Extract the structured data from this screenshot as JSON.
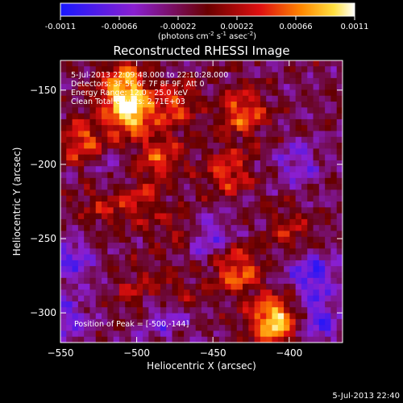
{
  "colorbar": {
    "ticks": [
      "-0.0011",
      "-0.00066",
      "-0.00022",
      "0.00022",
      "0.00066",
      "0.0011"
    ],
    "tick_values": [
      -0.0011,
      -0.00066,
      -0.00022,
      0.00022,
      0.00066,
      0.0011
    ],
    "range": [
      -0.0011,
      0.0011
    ],
    "units_main": "(photons cm",
    "units_exp1": "-2",
    "units_mid": " s",
    "units_exp2": "-1",
    "units_tail": " asec",
    "units_exp3": "-2",
    "units_close": ")",
    "colormap": "blue-purple-red-orange-yellow-white"
  },
  "annotations": {
    "time_range": "5-Jul-2013 22:09:48.000 to 22:10:28.000",
    "detectors": "Detectors: 3F 5F 6F 7F 8F 9F, Att 0",
    "energy": "Energy Range: 12.0 - 25.0 keV",
    "clean": "Clean     Total Counts: 2.71E+03",
    "peak": "Position of Peak = [-500,-144]"
  },
  "footer_timestamp": "5-Jul-2013 22:40",
  "chart_data": {
    "type": "heatmap",
    "title": "Reconstructed RHESSI Image",
    "xlabel": "Heliocentric X (arcsec)",
    "ylabel": "Heliocentric Y (arcsec)",
    "xlim": [
      -550,
      -365
    ],
    "ylim": [
      -320,
      -130
    ],
    "x_ticks": [
      -550,
      -500,
      -450,
      -400
    ],
    "y_ticks": [
      -300,
      -250,
      -200,
      -150
    ],
    "x_tick_labels": [
      "−550",
      "−500",
      "−450",
      "−400"
    ],
    "y_tick_labels": [
      "−300",
      "−250",
      "−200",
      "−150"
    ],
    "value_range": [
      -0.0011,
      0.0011
    ],
    "peak_position": [
      -500,
      -144
    ],
    "bright_regions": [
      {
        "x": -505,
        "y": -165,
        "level": 0.8
      },
      {
        "x": -510,
        "y": -145,
        "level": 0.6
      },
      {
        "x": -475,
        "y": -160,
        "level": 0.45
      },
      {
        "x": -430,
        "y": -165,
        "level": 0.55
      },
      {
        "x": -535,
        "y": -185,
        "level": 0.5
      },
      {
        "x": -485,
        "y": -195,
        "level": 0.45
      },
      {
        "x": -440,
        "y": -205,
        "level": 0.45
      },
      {
        "x": -500,
        "y": -225,
        "level": 0.35
      },
      {
        "x": -525,
        "y": -225,
        "level": 0.3
      },
      {
        "x": -470,
        "y": -245,
        "level": 0.3
      },
      {
        "x": -400,
        "y": -245,
        "level": 0.3
      },
      {
        "x": -435,
        "y": -272,
        "level": 0.55
      },
      {
        "x": -410,
        "y": -305,
        "level": 0.85
      },
      {
        "x": -475,
        "y": -290,
        "level": 0.35
      },
      {
        "x": -500,
        "y": -285,
        "level": 0.25
      }
    ],
    "dark_regions": [
      {
        "x": -480,
        "y": -300,
        "level": -0.45
      },
      {
        "x": -455,
        "y": -250,
        "level": -0.4
      },
      {
        "x": -545,
        "y": -265,
        "level": -0.35
      },
      {
        "x": -385,
        "y": -275,
        "level": -0.45
      },
      {
        "x": -380,
        "y": -305,
        "level": -0.4
      },
      {
        "x": -545,
        "y": -305,
        "level": -0.35
      },
      {
        "x": -395,
        "y": -200,
        "level": -0.3
      },
      {
        "x": -520,
        "y": -205,
        "level": -0.25
      }
    ]
  }
}
